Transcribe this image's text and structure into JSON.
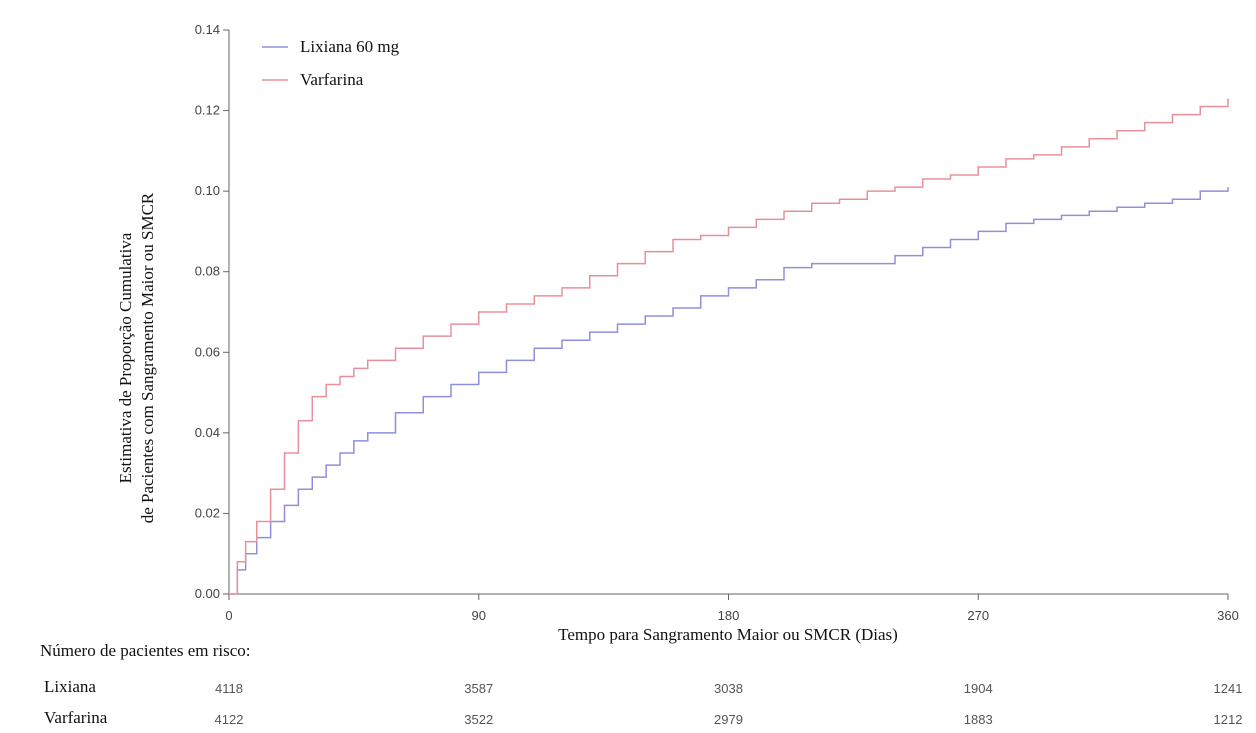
{
  "chart_data": {
    "type": "line",
    "title": "",
    "xlabel": "Tempo para Sangramento Maior ou SMCR (Dias)",
    "ylabel_lines": [
      "Estimativa de Proporção Cumulativa",
      "de Pacientes com Sangramento Maior ou SMCR"
    ],
    "xlim": [
      0,
      360
    ],
    "ylim": [
      0,
      0.14
    ],
    "x_ticks": [
      0,
      90,
      180,
      270,
      360
    ],
    "x_tick_labels": [
      "0",
      "90",
      "180",
      "270",
      "360"
    ],
    "y_ticks": [
      0,
      0.02,
      0.04,
      0.06,
      0.08,
      0.1,
      0.12,
      0.14
    ],
    "y_tick_labels": [
      "0.00",
      "0.02",
      "0.04",
      "0.06",
      "0.08",
      "0.10",
      "0.12",
      "0.14"
    ],
    "grid": false,
    "legend_position": "top-left",
    "series": [
      {
        "name": "Lixiana 60 mg",
        "color": "#8f8fe0",
        "x": [
          0,
          3,
          6,
          10,
          15,
          20,
          25,
          30,
          35,
          40,
          45,
          50,
          60,
          70,
          80,
          90,
          100,
          110,
          120,
          130,
          140,
          150,
          160,
          170,
          180,
          190,
          200,
          210,
          220,
          230,
          240,
          250,
          260,
          270,
          280,
          290,
          300,
          310,
          320,
          330,
          340,
          350,
          360
        ],
        "y": [
          0,
          0.006,
          0.01,
          0.014,
          0.018,
          0.022,
          0.026,
          0.029,
          0.032,
          0.035,
          0.038,
          0.04,
          0.045,
          0.049,
          0.052,
          0.055,
          0.058,
          0.061,
          0.063,
          0.065,
          0.067,
          0.069,
          0.071,
          0.074,
          0.076,
          0.078,
          0.081,
          0.082,
          0.082,
          0.082,
          0.084,
          0.086,
          0.088,
          0.09,
          0.092,
          0.093,
          0.094,
          0.095,
          0.096,
          0.097,
          0.098,
          0.1,
          0.101
        ]
      },
      {
        "name": "Varfarina",
        "color": "#e8909a",
        "x": [
          0,
          3,
          6,
          10,
          15,
          20,
          25,
          30,
          35,
          40,
          45,
          50,
          60,
          70,
          80,
          90,
          100,
          110,
          120,
          130,
          140,
          150,
          160,
          170,
          180,
          190,
          200,
          210,
          220,
          230,
          240,
          250,
          260,
          270,
          280,
          290,
          300,
          310,
          320,
          330,
          340,
          350,
          360
        ],
        "y": [
          0,
          0.008,
          0.013,
          0.018,
          0.026,
          0.035,
          0.043,
          0.049,
          0.052,
          0.054,
          0.056,
          0.058,
          0.061,
          0.064,
          0.067,
          0.07,
          0.072,
          0.074,
          0.076,
          0.079,
          0.082,
          0.085,
          0.088,
          0.089,
          0.091,
          0.093,
          0.095,
          0.097,
          0.098,
          0.1,
          0.101,
          0.103,
          0.104,
          0.106,
          0.108,
          0.109,
          0.111,
          0.113,
          0.115,
          0.117,
          0.119,
          0.121,
          0.123
        ]
      }
    ],
    "risk_table": {
      "title": "Número de pacientes em risco:",
      "rows": [
        {
          "label": "Lixiana",
          "values": [
            "4118",
            "3587",
            "3038",
            "1904",
            "1241"
          ]
        },
        {
          "label": "Varfarina",
          "values": [
            "4122",
            "3522",
            "2979",
            "1883",
            "1212"
          ]
        }
      ]
    }
  }
}
